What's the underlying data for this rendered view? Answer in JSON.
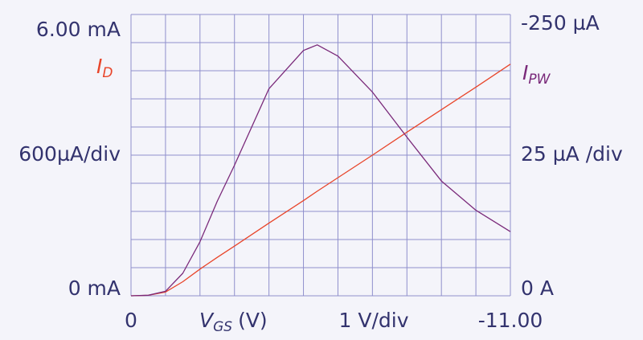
{
  "chart_data": {
    "type": "line",
    "x": [
      0,
      -0.5,
      -1,
      -1.5,
      -2,
      -2.5,
      -3,
      -4,
      -5,
      -5.4,
      -6,
      -7,
      -8,
      -9,
      -10,
      -11
    ],
    "series": [
      {
        "name": "I",
        "subscript": "D",
        "color": "#e8452a",
        "values": [
          0,
          0.01,
          0.08,
          0.3,
          0.57,
          0.82,
          1.06,
          1.55,
          2.03,
          2.23,
          2.52,
          3.0,
          3.49,
          3.97,
          4.45,
          4.94
        ]
      },
      {
        "name": "I",
        "subscript": "PW",
        "color": "#7a2a7a",
        "axis": "y2",
        "values": [
          0,
          -0.5,
          -4,
          -20,
          -48,
          -84,
          -116,
          -184,
          -218,
          -223,
          -213,
          -181,
          -141,
          -102,
          -76,
          -57
        ]
      }
    ],
    "x_label": {
      "symbol": "V",
      "subscript": "GS",
      "unit": "(V)"
    },
    "xlim": [
      0,
      -11
    ],
    "xticks": [
      {
        "value": 0,
        "label": "0"
      },
      {
        "value": -11,
        "label": "-11.00"
      }
    ],
    "xdiv": {
      "value": 1,
      "label": "1 V/div"
    },
    "ylim": [
      0,
      6
    ],
    "yticks": [
      {
        "value": 6,
        "label": "6.00 mA"
      },
      {
        "value": 0,
        "label": "0 mA"
      }
    ],
    "ydiv": {
      "value": 0.6,
      "label": "600µA/div"
    },
    "y2lim": [
      0,
      -250
    ],
    "y2ticks": [
      {
        "value": -250,
        "label": "-250 µA"
      },
      {
        "value": 0,
        "label": "0 A"
      }
    ],
    "y2div": {
      "value": 25,
      "label": "25 µA /div"
    },
    "grid": true
  }
}
